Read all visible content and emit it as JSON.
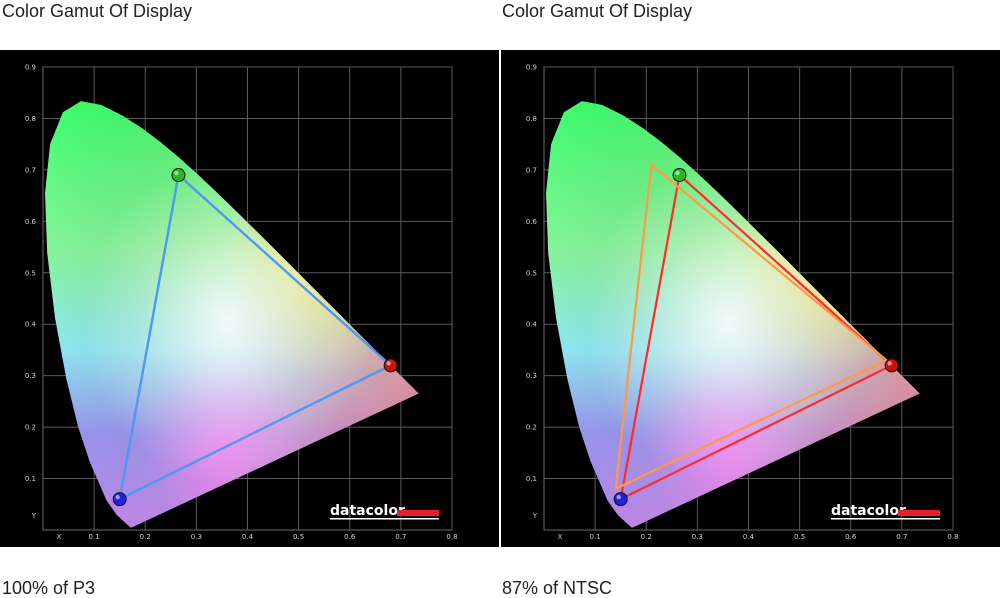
{
  "chart_data": [
    {
      "type": "scatter",
      "title": "Color Gamut Of Display",
      "caption": "100% of P3",
      "xlabel": "X",
      "ylabel": "Y",
      "xlim": [
        0,
        0.8
      ],
      "ylim": [
        0,
        0.9
      ],
      "x_ticks": [
        "0.1",
        "0.2",
        "0.3",
        "0.4",
        "0.5",
        "0.6",
        "0.7",
        "0.8"
      ],
      "y_ticks": [
        "0.1",
        "0.2",
        "0.3",
        "0.4",
        "0.5",
        "0.6",
        "0.7",
        "0.8",
        "0.9"
      ],
      "grid": true,
      "logo": "datacolor",
      "series": [
        {
          "color": "#ff2a2a",
          "points": [
            [
              0.68,
              0.32
            ],
            [
              0.265,
              0.69
            ],
            [
              0.15,
              0.06
            ]
          ]
        },
        {
          "color": "#3fa0ff",
          "points": [
            [
              0.68,
              0.32
            ],
            [
              0.265,
              0.69
            ],
            [
              0.15,
              0.06
            ]
          ]
        }
      ],
      "markers": [
        {
          "color": "#22bb22",
          "x": 0.265,
          "y": 0.69
        },
        {
          "color": "#cc1111",
          "x": 0.68,
          "y": 0.32
        },
        {
          "color": "#2222dd",
          "x": 0.15,
          "y": 0.06
        }
      ]
    },
    {
      "type": "scatter",
      "title": "Color Gamut Of Display",
      "caption": "87% of NTSC",
      "xlabel": "X",
      "ylabel": "Y",
      "xlim": [
        0,
        0.8
      ],
      "ylim": [
        0,
        0.9
      ],
      "x_ticks": [
        "0.1",
        "0.2",
        "0.3",
        "0.4",
        "0.5",
        "0.6",
        "0.7",
        "0.8"
      ],
      "y_ticks": [
        "0.1",
        "0.2",
        "0.3",
        "0.4",
        "0.5",
        "0.6",
        "0.7",
        "0.8",
        "0.9"
      ],
      "grid": true,
      "logo": "datacolor",
      "series": [
        {
          "color": "#ff2a2a",
          "points": [
            [
              0.68,
              0.32
            ],
            [
              0.265,
              0.69
            ],
            [
              0.15,
              0.06
            ]
          ]
        },
        {
          "color": "#ff9944",
          "points": [
            [
              0.67,
              0.33
            ],
            [
              0.21,
              0.71
            ],
            [
              0.14,
              0.08
            ]
          ]
        }
      ],
      "markers": [
        {
          "color": "#22bb22",
          "x": 0.265,
          "y": 0.69
        },
        {
          "color": "#cc1111",
          "x": 0.68,
          "y": 0.32
        },
        {
          "color": "#2222dd",
          "x": 0.15,
          "y": 0.06
        }
      ]
    }
  ]
}
